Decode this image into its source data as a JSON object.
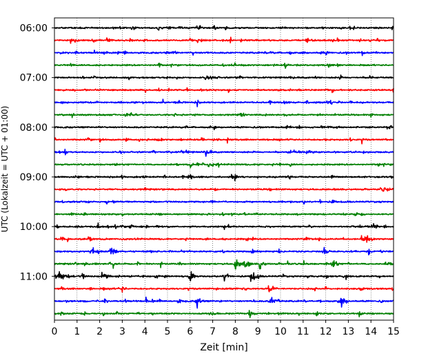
{
  "chart_data": {
    "type": "line",
    "title": "",
    "xlabel": "Zeit  [min]",
    "ylabel": "UTC (Lokalzeit = UTC + 01:00)",
    "xlim": [
      0,
      15
    ],
    "x_ticks": [
      0,
      1,
      2,
      3,
      4,
      5,
      6,
      7,
      8,
      9,
      10,
      11,
      12,
      13,
      14,
      15
    ],
    "x_tick_labels": [
      "0",
      "1",
      "2",
      "3",
      "4",
      "5",
      "6",
      "7",
      "8",
      "9",
      "10",
      "11",
      "12",
      "13",
      "14",
      "15"
    ],
    "y_ticks": [
      {
        "row": 0,
        "label": "06:00"
      },
      {
        "row": 4,
        "label": "07:00"
      },
      {
        "row": 8,
        "label": "08:00"
      },
      {
        "row": 12,
        "label": "09:00"
      },
      {
        "row": 16,
        "label": "10:00"
      },
      {
        "row": 20,
        "label": "11:00"
      }
    ],
    "grid": "vertical dotted",
    "row_minutes": 15,
    "color_cycle": [
      "#000000",
      "#ff0000",
      "#0000ff",
      "#008000"
    ],
    "traces": [
      {
        "start": "06:00",
        "events": [
          [
            6.3,
            2.0
          ]
        ]
      },
      {
        "start": "06:15",
        "events": []
      },
      {
        "start": "06:30",
        "events": []
      },
      {
        "start": "06:45",
        "events": []
      },
      {
        "start": "07:00",
        "events": []
      },
      {
        "start": "07:15",
        "events": [
          [
            3.8,
            1.5
          ]
        ]
      },
      {
        "start": "07:30",
        "events": [
          [
            4.8,
            1.5
          ]
        ]
      },
      {
        "start": "07:45",
        "events": [
          [
            5.3,
            1.3
          ]
        ]
      },
      {
        "start": "08:00",
        "events": [
          [
            11.8,
            1.3
          ]
        ]
      },
      {
        "start": "08:15",
        "events": [
          [
            13.6,
            1.8
          ]
        ]
      },
      {
        "start": "08:30",
        "events": [
          [
            5.6,
            1.3
          ]
        ]
      },
      {
        "start": "08:45",
        "events": [
          [
            14.3,
            1.8
          ]
        ]
      },
      {
        "start": "09:00",
        "events": []
      },
      {
        "start": "09:15",
        "events": []
      },
      {
        "start": "09:30",
        "events": []
      },
      {
        "start": "09:45",
        "events": [
          [
            1.3,
            2.0
          ]
        ]
      },
      {
        "start": "10:00",
        "events": [
          [
            7.7,
            1.4
          ]
        ]
      },
      {
        "start": "10:15",
        "events": [
          [
            13.6,
            4.0
          ],
          [
            8.5,
            2.0
          ],
          [
            11.7,
            1.8
          ]
        ]
      },
      {
        "start": "10:30",
        "events": [
          [
            1.7,
            3.5
          ],
          [
            2.5,
            2.8
          ],
          [
            11.9,
            3.0
          ]
        ]
      },
      {
        "start": "10:45",
        "events": [
          [
            8.0,
            4.0
          ],
          [
            8.4,
            4.3
          ],
          [
            9.1,
            2.8
          ],
          [
            12.3,
            3.5
          ],
          [
            4.7,
            2.5
          ],
          [
            2.6,
            2.0
          ],
          [
            10.3,
            2.2
          ]
        ]
      },
      {
        "start": "11:00",
        "events": [
          [
            0.2,
            4.2
          ],
          [
            6.0,
            3.6
          ],
          [
            8.7,
            4.5
          ],
          [
            7.5,
            3.0
          ],
          [
            2.1,
            2.3
          ],
          [
            12.9,
            2.0
          ]
        ]
      },
      {
        "start": "11:15",
        "events": [
          [
            9.5,
            3.5
          ],
          [
            3.0,
            2.3
          ]
        ]
      },
      {
        "start": "11:30",
        "events": [
          [
            6.3,
            4.0
          ],
          [
            9.6,
            3.3
          ],
          [
            12.7,
            4.3
          ],
          [
            15.0,
            2.0
          ]
        ]
      },
      {
        "start": "11:45",
        "events": [
          [
            8.6,
            3.0
          ],
          [
            1.3,
            1.5
          ]
        ]
      }
    ]
  }
}
